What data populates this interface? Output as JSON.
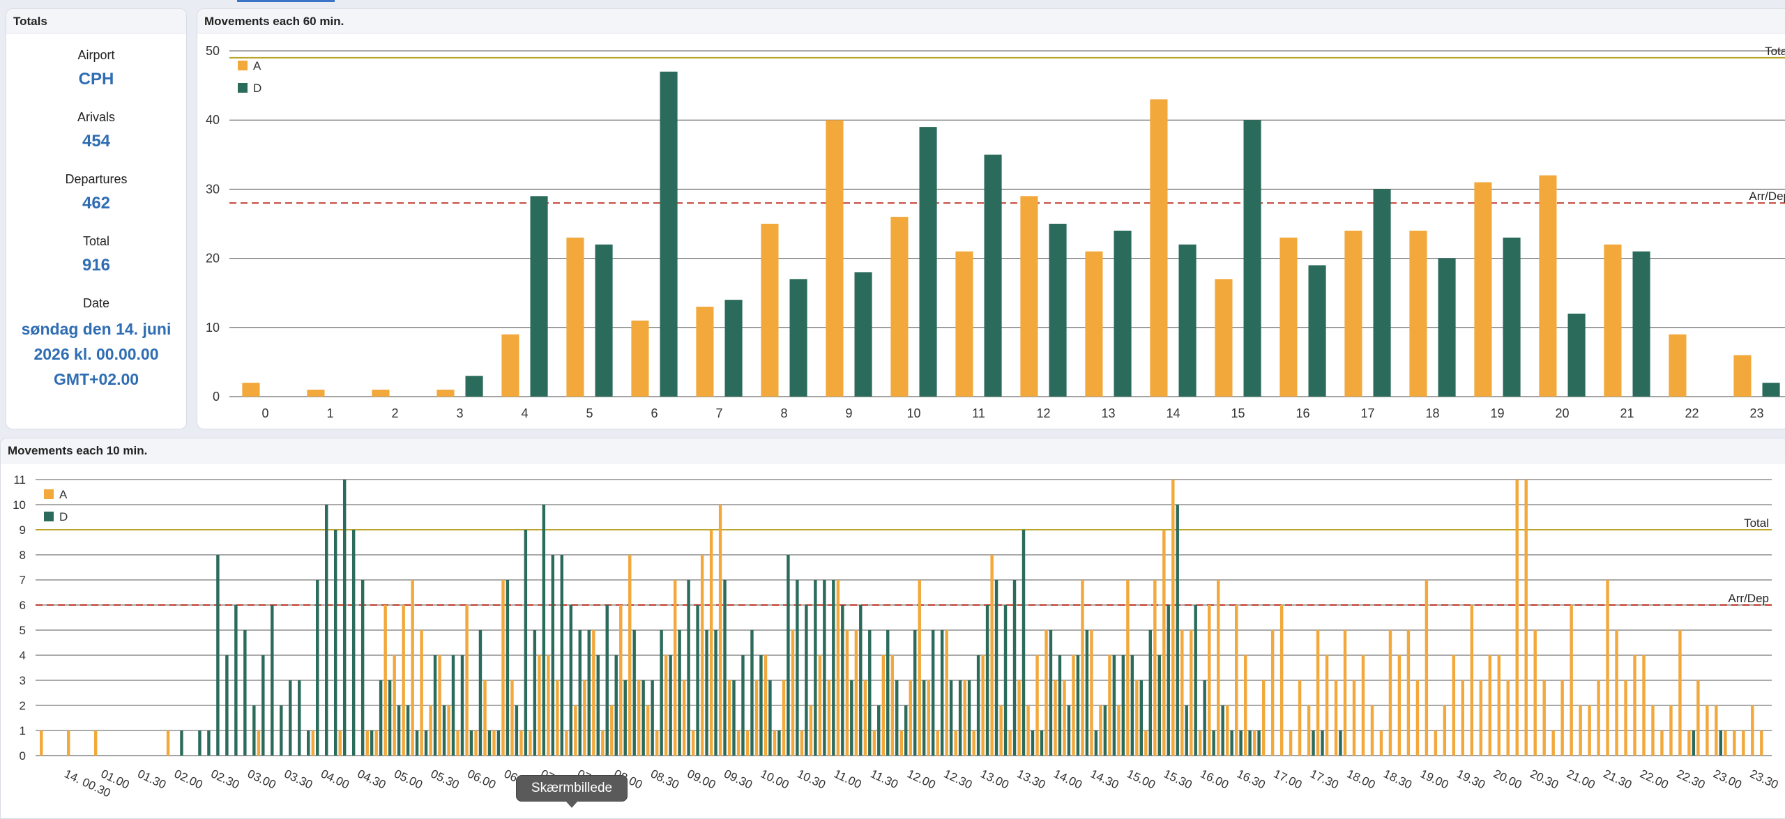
{
  "totals": {
    "title": "Totals",
    "airport_label": "Airport",
    "airport_value": "CPH",
    "arrivals_label": "Arivals",
    "arrivals_value": "454",
    "departures_label": "Departures",
    "departures_value": "462",
    "total_label": "Total",
    "total_value": "916",
    "date_label": "Date",
    "date_value": "søndag den 14. juni 2026 kl. 00.00.00 GMT+02.00"
  },
  "tooltip": "Skærmbillede",
  "chart_data": [
    {
      "type": "bar",
      "title": "Movements each 60 min.",
      "categories": [
        "0",
        "1",
        "2",
        "3",
        "4",
        "5",
        "6",
        "7",
        "8",
        "9",
        "10",
        "11",
        "12",
        "13",
        "14",
        "15",
        "16",
        "17",
        "18",
        "19",
        "20",
        "21",
        "22",
        "23"
      ],
      "series": [
        {
          "name": "A",
          "color": "#f2a83b",
          "values": [
            2,
            1,
            1,
            1,
            9,
            23,
            11,
            13,
            25,
            40,
            26,
            21,
            29,
            21,
            43,
            17,
            23,
            24,
            24,
            31,
            32,
            22,
            9,
            6
          ]
        },
        {
          "name": "D",
          "color": "#2b6b5b",
          "values": [
            0,
            0,
            0,
            3,
            29,
            22,
            47,
            14,
            17,
            18,
            39,
            35,
            25,
            24,
            22,
            40,
            19,
            30,
            20,
            23,
            12,
            21,
            0,
            2
          ]
        }
      ],
      "yticks": [
        0,
        10,
        20,
        30,
        40,
        50
      ],
      "ylim": [
        0,
        50
      ],
      "reference_lines": [
        {
          "label": "Total",
          "value": 49,
          "color": "#b9a52a",
          "style": "solid"
        },
        {
          "label": "Arr/Dep",
          "value": 28,
          "color": "#c0392b",
          "style": "dashed"
        }
      ],
      "legend_position": "top-left",
      "grid": true
    },
    {
      "type": "bar",
      "title": "Movements each 10 min.",
      "tick_labels": [
        "14. 00.30",
        "01.00",
        "01.30",
        "02.00",
        "02.30",
        "03.00",
        "03.30",
        "04.00",
        "04.30",
        "05.00",
        "05.30",
        "06.00",
        "06.30",
        "07.00",
        "07.30",
        "08.00",
        "08.30",
        "09.00",
        "09.30",
        "10.00",
        "10.30",
        "11.00",
        "11.30",
        "12.00",
        "12.30",
        "13.00",
        "13.30",
        "14.00",
        "14.30",
        "15.00",
        "15.30",
        "16.00",
        "16.30",
        "17.00",
        "17.30",
        "18.00",
        "18.30",
        "19.00",
        "19.30",
        "20.00",
        "20.30",
        "21.00",
        "21.30",
        "22.00",
        "22.30",
        "23.00",
        "23.30"
      ],
      "series": [
        {
          "name": "A",
          "color": "#f2a83b",
          "values": [
            1,
            0,
            0,
            1,
            0,
            0,
            1,
            0,
            0,
            0,
            0,
            0,
            0,
            0,
            1,
            0,
            0,
            0,
            0,
            0,
            0,
            0,
            0,
            0,
            1,
            0,
            0,
            0,
            0,
            0,
            1,
            0,
            0,
            1,
            0,
            0,
            1,
            1,
            6,
            4,
            6,
            7,
            5,
            2,
            4,
            2,
            1,
            6,
            1,
            3,
            1,
            7,
            3,
            1,
            1,
            4,
            4,
            3,
            1,
            2,
            3,
            5,
            1,
            2,
            6,
            8,
            3,
            2,
            1,
            4,
            7,
            3,
            1,
            8,
            9,
            10,
            3,
            1,
            1,
            3,
            4,
            1,
            3,
            5,
            1,
            2,
            4,
            3,
            7,
            5,
            5,
            3,
            1,
            4,
            4,
            1,
            3,
            7,
            3,
            1,
            5,
            1,
            3,
            1,
            4,
            8,
            2,
            1,
            3,
            2,
            4,
            5,
            3,
            3,
            4,
            7,
            5,
            2,
            4,
            2,
            7,
            3,
            1,
            7,
            9,
            11,
            5,
            5,
            1,
            6,
            7,
            2,
            6,
            4,
            1,
            3,
            5,
            6,
            1,
            3,
            2,
            5,
            4,
            3,
            5,
            3,
            4,
            2,
            1,
            5,
            4,
            5,
            3,
            7,
            1,
            2,
            4,
            3,
            6,
            3,
            4,
            4,
            3,
            11,
            11,
            5,
            3,
            1,
            3,
            6,
            2,
            2,
            3,
            7,
            5,
            3,
            4,
            4,
            2,
            1,
            2,
            5,
            1,
            3,
            2,
            2,
            1,
            1,
            1,
            2,
            1
          ],
          "note": "one value per 10-minute slot"
        },
        {
          "name": "D",
          "color": "#2b6b5b",
          "values": [
            0,
            0,
            0,
            0,
            0,
            0,
            0,
            0,
            0,
            0,
            0,
            0,
            0,
            0,
            0,
            1,
            0,
            1,
            1,
            8,
            4,
            6,
            5,
            2,
            4,
            6,
            2,
            3,
            3,
            1,
            7,
            10,
            9,
            11,
            9,
            7,
            1,
            3,
            3,
            2,
            2,
            1,
            1,
            4,
            2,
            4,
            4,
            1,
            5,
            1,
            1,
            7,
            2,
            9,
            5,
            10,
            8,
            8,
            6,
            5,
            5,
            4,
            6,
            4,
            3,
            5,
            3,
            3,
            5,
            4,
            5,
            7,
            6,
            5,
            5,
            7,
            3,
            4,
            5,
            4,
            3,
            1,
            8,
            7,
            6,
            7,
            7,
            7,
            6,
            3,
            6,
            5,
            2,
            5,
            3,
            2,
            5,
            3,
            5,
            5,
            3,
            3,
            3,
            4,
            6,
            7,
            6,
            7,
            9,
            1,
            1,
            5,
            4,
            2,
            4,
            5,
            1,
            2,
            4,
            4,
            4,
            3,
            5,
            4,
            6,
            10,
            2,
            6,
            3,
            1,
            2,
            1,
            1,
            1,
            1,
            0,
            0,
            0,
            0,
            0,
            1,
            1,
            0,
            1,
            0,
            0,
            0,
            0,
            0,
            0,
            0,
            0,
            0,
            0,
            0,
            0,
            0,
            0,
            0,
            0,
            0,
            0,
            0,
            0,
            0,
            0,
            0,
            0,
            0,
            0,
            0,
            0,
            0,
            0,
            0,
            0,
            0,
            0,
            0,
            0,
            0,
            0,
            1,
            0,
            0,
            1,
            0
          ],
          "note": "one value per 10-minute slot"
        }
      ],
      "yticks": [
        0,
        1,
        2,
        3,
        4,
        5,
        6,
        7,
        8,
        9,
        10,
        11
      ],
      "ylim": [
        0,
        11
      ],
      "reference_lines": [
        {
          "label": "Total",
          "value": 9,
          "color": "#b9a52a",
          "style": "solid"
        },
        {
          "label": "Arr/Dep",
          "value": 6,
          "color": "#c0392b",
          "style": "dashed"
        }
      ],
      "legend_position": "top-left",
      "grid": true
    }
  ]
}
